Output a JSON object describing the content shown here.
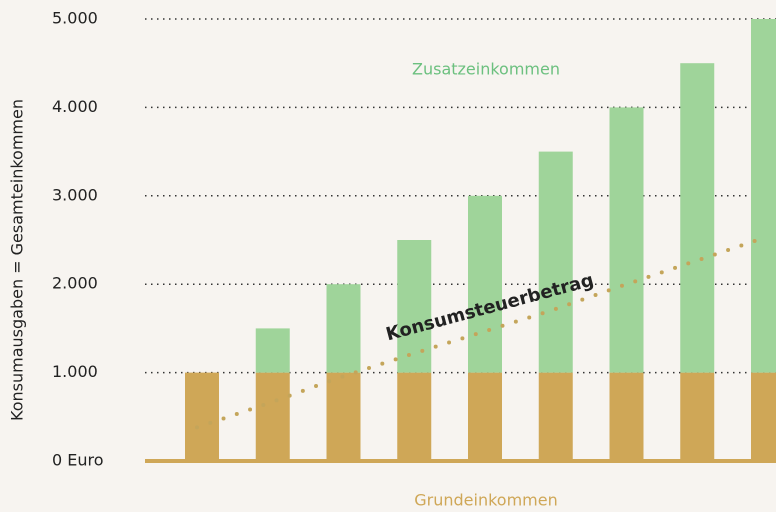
{
  "chart_data": {
    "type": "bar",
    "stacked": true,
    "y_label": "Konsumausgaben = Gesamteinkommen",
    "categories": [
      null,
      null,
      null,
      null,
      null,
      null,
      null,
      null,
      null
    ],
    "series": [
      {
        "name": "Grundeinkommen",
        "color": "#cfa757",
        "values": [
          1000,
          1000,
          1000,
          1000,
          1000,
          1000,
          1000,
          1000,
          1000
        ]
      },
      {
        "name": "Zusatzeinkommen",
        "color": "#9fd49a",
        "values": [
          0,
          500,
          1000,
          1500,
          2000,
          2500,
          3000,
          3500,
          4000
        ]
      },
      {
        "name": "Konsumsteuerbetrag",
        "type": "line",
        "color": "#c4a55a",
        "values": [
          380,
          650,
          940,
          1200,
          1450,
          1700,
          1980,
          2250,
          2520
        ]
      }
    ],
    "ylim": [
      0,
      5000
    ],
    "yticks": [
      {
        "value": 0,
        "label": "0 Euro"
      },
      {
        "value": 1000,
        "label": "1.000"
      },
      {
        "value": 2000,
        "label": "2.000"
      },
      {
        "value": 3000,
        "label": "3.000"
      },
      {
        "value": 4000,
        "label": "4.000"
      },
      {
        "value": 5000,
        "label": "5.000"
      }
    ],
    "grid": true
  }
}
